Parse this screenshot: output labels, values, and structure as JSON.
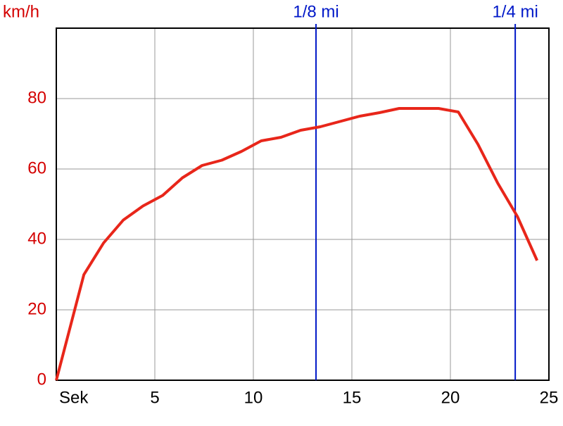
{
  "chart_data": {
    "type": "line",
    "y_label": "km/h",
    "x": [
      0,
      1.4,
      2.4,
      3.4,
      4.4,
      5.4,
      6.4,
      7.4,
      8.4,
      9.4,
      10.4,
      11.4,
      12.4,
      13.4,
      14.4,
      15.4,
      16.4,
      17.4,
      18.4,
      19.4,
      20.4,
      21.4,
      22.4,
      23.4,
      24.4
    ],
    "series": [
      {
        "color": "#e8261a",
        "values": [
          0,
          30,
          39,
          45.5,
          49.5,
          52.5,
          57.5,
          61,
          62.5,
          65,
          68,
          69,
          71,
          72,
          73.5,
          75,
          76,
          77.2,
          77.2,
          77.2,
          76.2,
          67,
          56,
          46.5,
          34
        ]
      }
    ],
    "xlim": [
      0,
      25
    ],
    "xticks": [
      {
        "value": 0,
        "label": "Sek"
      },
      5,
      10,
      15,
      20,
      25
    ],
    "ylim": [
      0,
      100
    ],
    "yticks": [
      0,
      20,
      40,
      60,
      80
    ],
    "grid": true,
    "y_tick_color": "#d40000",
    "x_tick_color": "#000000",
    "markers": [
      {
        "x": 13.18,
        "label": "1/8 mi"
      },
      {
        "x": 23.29,
        "label": "1/4 mi"
      }
    ],
    "marker_color": "#0018c8"
  }
}
